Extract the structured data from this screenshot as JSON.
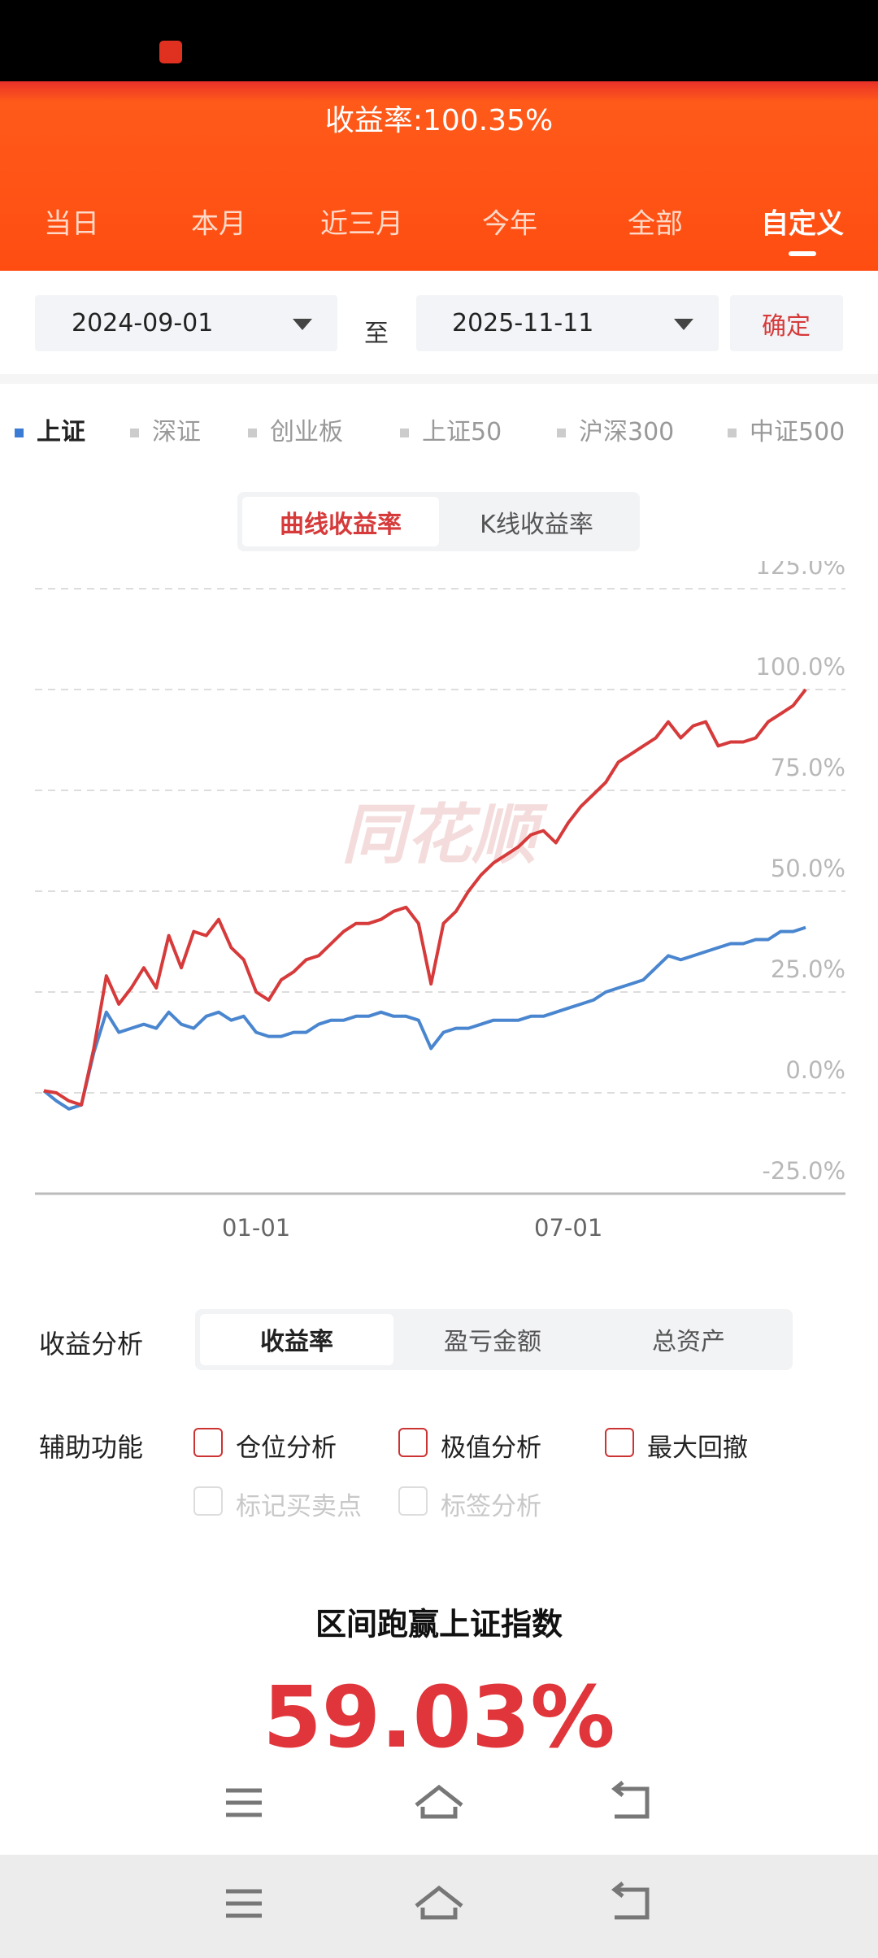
{
  "header": {
    "title": "收益率:100.35%",
    "tabs": [
      "当日",
      "本月",
      "近三月",
      "今年",
      "全部",
      "自定义"
    ]
  },
  "date_range": {
    "start": "2024-09-01",
    "separator": "至",
    "end": "2025-11-11",
    "confirm": "确定"
  },
  "index_tabs": [
    "上证",
    "深证",
    "创业板",
    "上证50",
    "沪深300",
    "中证500"
  ],
  "chart_mode_tabs": [
    "曲线收益率",
    "K线收益率"
  ],
  "watermark": "同花顺",
  "chart_data": {
    "type": "line",
    "categories": [
      null,
      null,
      null,
      null,
      null,
      null,
      null,
      null,
      null,
      null,
      null,
      null,
      null,
      null,
      null,
      null,
      null,
      "01-01",
      null,
      null,
      null,
      null,
      null,
      null,
      null,
      null,
      null,
      null,
      null,
      null,
      null,
      null,
      null,
      null,
      null,
      null,
      null,
      null,
      null,
      null,
      null,
      null,
      "07-01",
      null,
      null,
      null,
      null,
      null,
      null,
      null,
      null,
      null,
      null,
      null,
      null,
      null,
      null,
      null,
      null,
      null,
      null,
      null
    ],
    "series": [
      {
        "color": "#4a86cf",
        "values": [
          0.5,
          -2,
          -4,
          -3,
          10,
          20,
          15,
          16,
          17,
          16,
          20,
          17,
          16,
          19,
          20,
          18,
          19,
          15,
          14,
          14,
          15,
          15,
          17,
          18,
          18,
          19,
          19,
          20,
          19,
          19,
          18,
          11,
          15,
          16,
          16,
          17,
          18,
          18,
          18,
          19,
          19,
          20,
          21,
          22,
          23,
          25,
          26,
          27,
          28,
          31,
          34,
          33,
          34,
          35,
          36,
          37,
          37,
          38,
          38,
          40,
          40,
          41
        ]
      },
      {
        "color": "#d63a3a",
        "values": [
          0.5,
          0,
          -2,
          -3,
          11,
          29,
          22,
          26,
          31,
          26,
          39,
          31,
          40,
          39,
          43,
          36,
          33,
          25,
          23,
          28,
          30,
          33,
          34,
          37,
          40,
          42,
          42,
          43,
          45,
          46,
          42,
          27,
          42,
          45,
          50,
          54,
          57,
          59,
          61,
          64,
          65,
          62,
          67,
          71,
          74,
          77,
          82,
          84,
          86,
          88,
          92,
          88,
          91,
          92,
          86,
          87,
          87,
          88,
          92,
          94,
          96,
          100
        ]
      }
    ],
    "ylim": [
      -25,
      125
    ],
    "yticks": [
      {
        "value": -25,
        "label": "-25.0%"
      },
      {
        "value": 0,
        "label": "0.0%"
      },
      {
        "value": 25,
        "label": "25.0%"
      },
      {
        "value": 50,
        "label": "50.0%"
      },
      {
        "value": 75,
        "label": "75.0%"
      },
      {
        "value": 100,
        "label": "100.0%"
      },
      {
        "value": 125,
        "label": "125.0%"
      }
    ],
    "grid": true
  },
  "analysis": {
    "label": "收益分析",
    "tabs": [
      "收益率",
      "盈亏金额",
      "总资产"
    ]
  },
  "aux": {
    "label": "辅助功能",
    "options": [
      "仓位分析",
      "极值分析",
      "最大回撤"
    ],
    "disabled_options": [
      "标记买卖点",
      "标签分析"
    ]
  },
  "summary": {
    "label": "区间跑赢上证指数",
    "value": "59.03%"
  }
}
